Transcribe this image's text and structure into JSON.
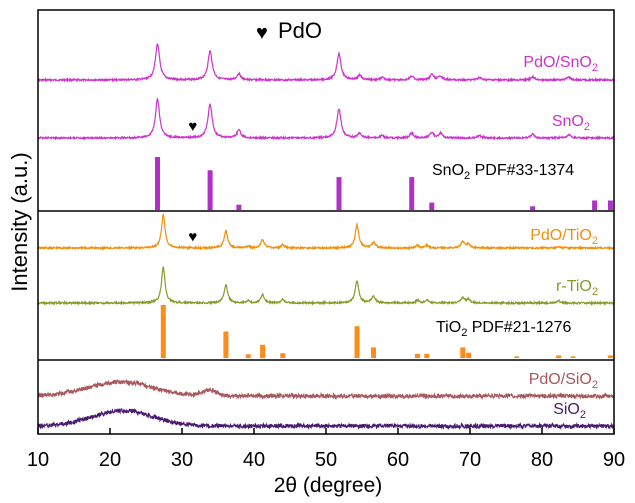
{
  "chart_data": {
    "type": "line",
    "xlabel": "2θ (degree)",
    "ylabel": "Intensity (a.u.)",
    "xlim": [
      10,
      90
    ],
    "xticks": [
      10,
      20,
      30,
      40,
      50,
      60,
      70,
      80,
      90
    ],
    "legend_symbol": "♥",
    "legend_text": "PdO",
    "panels": [
      {
        "name": "SnO2",
        "traces": [
          {
            "label": "PdO/SnO",
            "label_sub": "2",
            "color": "#cc33cc",
            "baseline": 1.0,
            "peaks": [
              {
                "x": 26.6,
                "h": 0.45,
                "w": 0.35
              },
              {
                "x": 33.9,
                "h": 0.36,
                "w": 0.35
              },
              {
                "x": 37.9,
                "h": 0.08,
                "w": 0.3
              },
              {
                "x": 51.8,
                "h": 0.33,
                "w": 0.35
              },
              {
                "x": 54.7,
                "h": 0.06,
                "w": 0.3
              },
              {
                "x": 57.8,
                "h": 0.03,
                "w": 0.3
              },
              {
                "x": 61.9,
                "h": 0.05,
                "w": 0.3
              },
              {
                "x": 64.7,
                "h": 0.07,
                "w": 0.3
              },
              {
                "x": 65.9,
                "h": 0.05,
                "w": 0.3
              },
              {
                "x": 71.3,
                "h": 0.03,
                "w": 0.3
              },
              {
                "x": 78.7,
                "h": 0.04,
                "w": 0.3
              },
              {
                "x": 83.7,
                "h": 0.04,
                "w": 0.3
              }
            ]
          },
          {
            "label": "SnO",
            "label_sub": "2",
            "color": "#cc33cc",
            "baseline": 1.0,
            "peaks": [
              {
                "x": 26.6,
                "h": 0.48,
                "w": 0.35
              },
              {
                "x": 33.9,
                "h": 0.42,
                "w": 0.35
              },
              {
                "x": 37.9,
                "h": 0.1,
                "w": 0.3
              },
              {
                "x": 51.8,
                "h": 0.36,
                "w": 0.35
              },
              {
                "x": 54.7,
                "h": 0.06,
                "w": 0.3
              },
              {
                "x": 57.8,
                "h": 0.03,
                "w": 0.3
              },
              {
                "x": 61.9,
                "h": 0.06,
                "w": 0.3
              },
              {
                "x": 64.7,
                "h": 0.07,
                "w": 0.3
              },
              {
                "x": 65.9,
                "h": 0.06,
                "w": 0.3
              },
              {
                "x": 71.3,
                "h": 0.03,
                "w": 0.3
              },
              {
                "x": 78.7,
                "h": 0.05,
                "w": 0.3
              },
              {
                "x": 83.7,
                "h": 0.04,
                "w": 0.3
              }
            ]
          }
        ],
        "reference": {
          "label": "SnO",
          "label_sub": "2",
          "label_rest": " PDF#33-1374",
          "color": "#b030c8",
          "bars": [
            {
              "x": 26.6,
              "h": 1.0
            },
            {
              "x": 33.9,
              "h": 0.75
            },
            {
              "x": 37.9,
              "h": 0.1
            },
            {
              "x": 51.8,
              "h": 0.62
            },
            {
              "x": 61.9,
              "h": 0.62
            },
            {
              "x": 64.7,
              "h": 0.14
            },
            {
              "x": 78.7,
              "h": 0.07
            },
            {
              "x": 87.3,
              "h": 0.18
            },
            {
              "x": 89.5,
              "h": 0.18
            }
          ]
        }
      },
      {
        "name": "TiO2",
        "traces": [
          {
            "label": "PdO/TiO",
            "label_sub": "2",
            "color": "#f0900a",
            "baseline": 1.0,
            "peaks": [
              {
                "x": 27.4,
                "h": 0.6,
                "w": 0.3
              },
              {
                "x": 36.1,
                "h": 0.3,
                "w": 0.3
              },
              {
                "x": 39.2,
                "h": 0.03,
                "w": 0.25
              },
              {
                "x": 41.2,
                "h": 0.15,
                "w": 0.3
              },
              {
                "x": 44.0,
                "h": 0.06,
                "w": 0.25
              },
              {
                "x": 54.3,
                "h": 0.42,
                "w": 0.3
              },
              {
                "x": 56.6,
                "h": 0.1,
                "w": 0.3
              },
              {
                "x": 62.7,
                "h": 0.05,
                "w": 0.25
              },
              {
                "x": 64.0,
                "h": 0.05,
                "w": 0.25
              },
              {
                "x": 69.0,
                "h": 0.12,
                "w": 0.3
              },
              {
                "x": 69.8,
                "h": 0.07,
                "w": 0.25
              },
              {
                "x": 82.3,
                "h": 0.03,
                "w": 0.25
              }
            ]
          },
          {
            "label": "r-TiO",
            "label_sub": "2",
            "color": "#8a9a2a",
            "baseline": 1.0,
            "peaks": [
              {
                "x": 27.4,
                "h": 0.65,
                "w": 0.3
              },
              {
                "x": 36.1,
                "h": 0.33,
                "w": 0.3
              },
              {
                "x": 39.2,
                "h": 0.04,
                "w": 0.25
              },
              {
                "x": 41.2,
                "h": 0.15,
                "w": 0.3
              },
              {
                "x": 44.0,
                "h": 0.07,
                "w": 0.25
              },
              {
                "x": 54.3,
                "h": 0.4,
                "w": 0.3
              },
              {
                "x": 56.6,
                "h": 0.12,
                "w": 0.3
              },
              {
                "x": 62.7,
                "h": 0.05,
                "w": 0.25
              },
              {
                "x": 64.0,
                "h": 0.06,
                "w": 0.25
              },
              {
                "x": 69.0,
                "h": 0.1,
                "w": 0.3
              },
              {
                "x": 69.8,
                "h": 0.07,
                "w": 0.25
              },
              {
                "x": 82.3,
                "h": 0.04,
                "w": 0.25
              }
            ]
          }
        ],
        "reference": {
          "label": "TiO",
          "label_sub": "2",
          "label_rest": " PDF#21-1276",
          "color": "#ff8c1a",
          "bars": [
            {
              "x": 27.4,
              "h": 1.0
            },
            {
              "x": 36.1,
              "h": 0.5
            },
            {
              "x": 39.2,
              "h": 0.07
            },
            {
              "x": 41.2,
              "h": 0.25
            },
            {
              "x": 44.0,
              "h": 0.09
            },
            {
              "x": 54.3,
              "h": 0.6
            },
            {
              "x": 56.6,
              "h": 0.2
            },
            {
              "x": 62.7,
              "h": 0.08
            },
            {
              "x": 64.0,
              "h": 0.08
            },
            {
              "x": 69.0,
              "h": 0.2
            },
            {
              "x": 69.8,
              "h": 0.1
            },
            {
              "x": 76.5,
              "h": 0.03
            },
            {
              "x": 82.3,
              "h": 0.05
            },
            {
              "x": 84.3,
              "h": 0.03
            },
            {
              "x": 89.5,
              "h": 0.05
            }
          ]
        }
      },
      {
        "name": "SiO2",
        "traces": [
          {
            "label": "PdO/SiO",
            "label_sub": "2",
            "color": "#a8585c",
            "baseline": 1.0,
            "humps": [
              {
                "x": 21.5,
                "h": 0.25,
                "w": 4.5
              },
              {
                "x": 33.8,
                "h": 0.1,
                "w": 1.0
              }
            ]
          },
          {
            "label": "SiO",
            "label_sub": "2",
            "color": "#4a1a6e",
            "baseline": 1.0,
            "humps": [
              {
                "x": 21.8,
                "h": 0.55,
                "w": 4.2
              }
            ]
          }
        ]
      }
    ],
    "markers": [
      {
        "x": 31.5,
        "panel": "SnO2",
        "trace": 1
      },
      {
        "x": 31.5,
        "panel": "TiO2",
        "trace": 0
      }
    ]
  }
}
